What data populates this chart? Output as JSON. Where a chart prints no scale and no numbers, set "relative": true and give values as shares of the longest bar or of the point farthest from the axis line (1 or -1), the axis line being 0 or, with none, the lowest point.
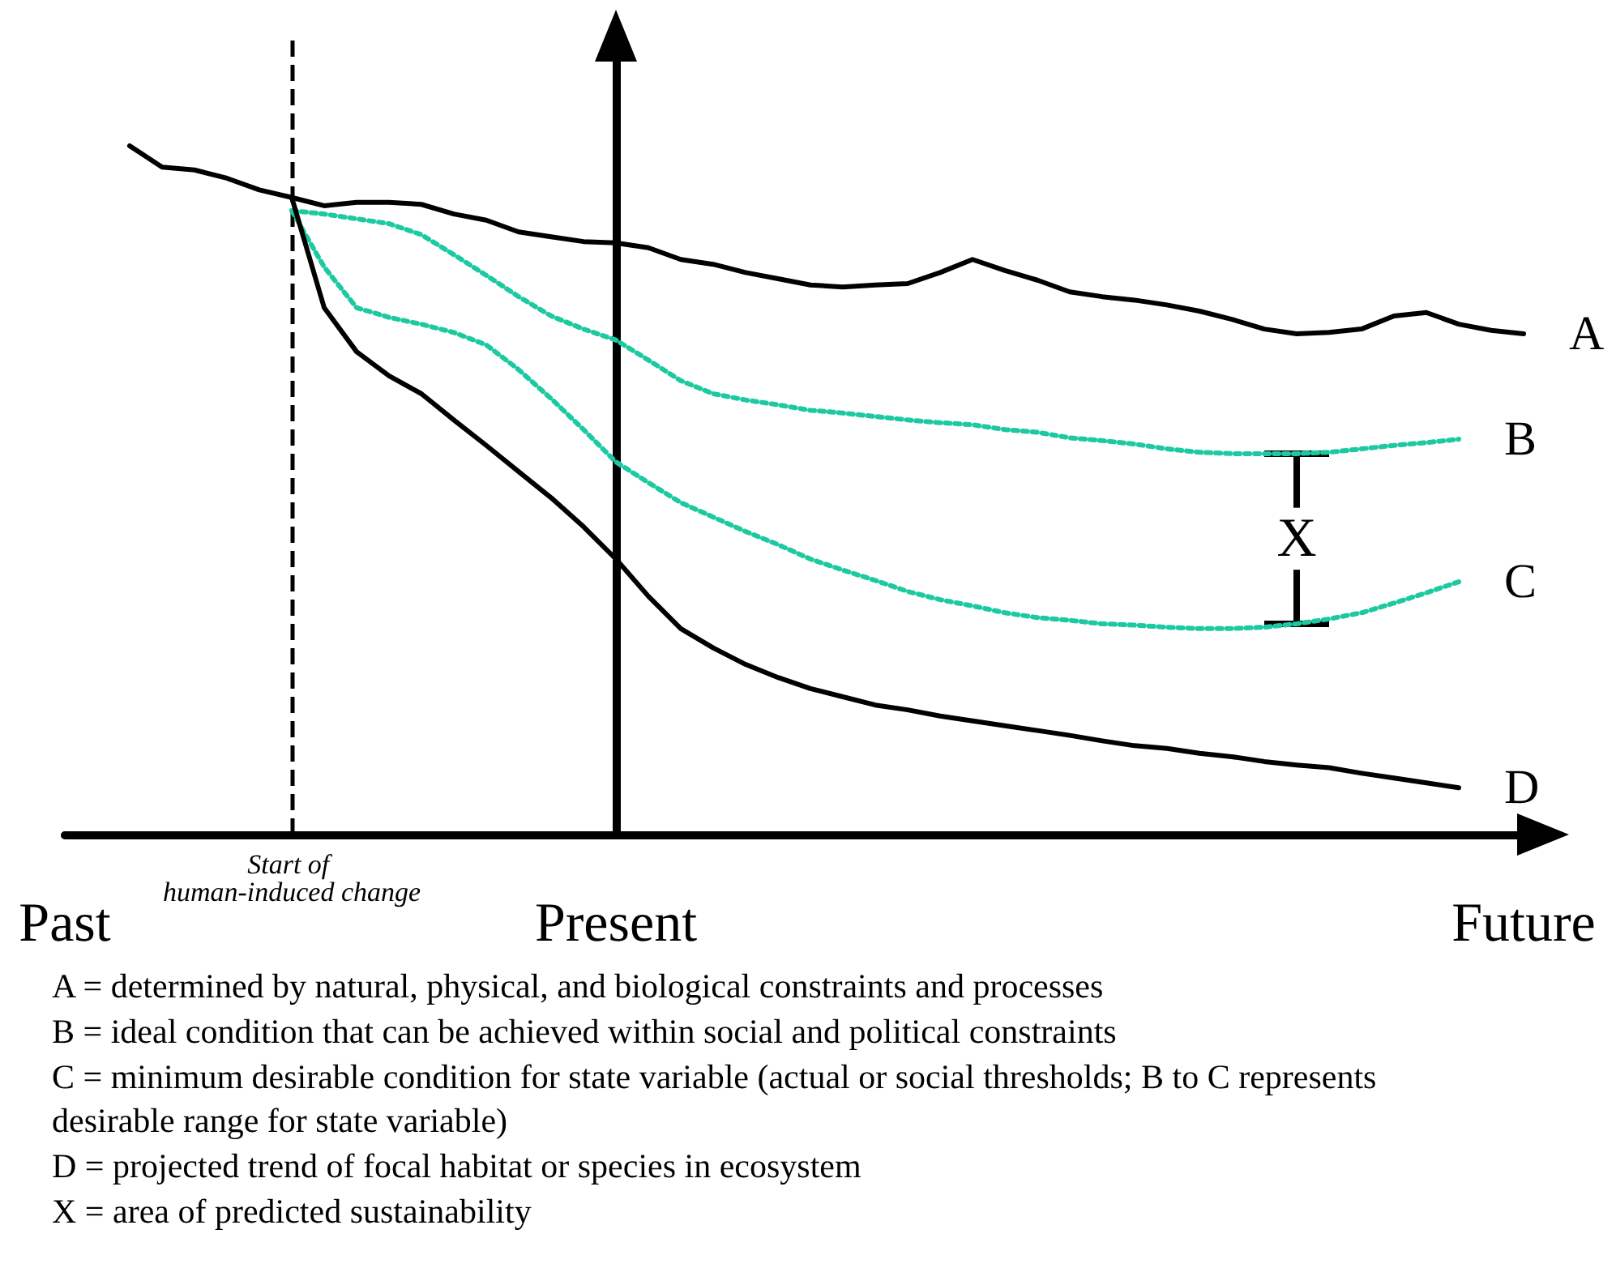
{
  "chart_data": {
    "type": "line",
    "relative": true,
    "legend": false,
    "grid": false,
    "marker": "none",
    "categories": [
      "Past",
      null,
      null,
      null,
      null,
      null,
      null,
      null,
      null,
      null,
      null,
      null,
      null,
      null,
      null,
      null,
      null,
      "Present",
      null,
      null,
      null,
      null,
      null,
      null,
      null,
      null,
      null,
      null,
      null,
      null,
      null,
      null,
      null,
      null,
      null,
      null,
      null,
      null,
      null,
      null,
      null,
      null,
      null,
      null,
      null,
      "Future"
    ],
    "series": [
      {
        "name": "A",
        "color": "#000000",
        "line_style": "solid",
        "values": [
          null,
          null,
          1,
          0.969,
          0.965,
          0.953,
          0.936,
          0.925,
          0.913,
          0.918,
          0.918,
          0.915,
          0.901,
          0.892,
          0.875,
          0.868,
          0.861,
          0.859,
          0.852,
          0.835,
          0.828,
          0.816,
          0.807,
          0.798,
          0.795,
          0.798,
          0.8,
          0.816,
          0.835,
          0.819,
          0.805,
          0.788,
          0.781,
          0.776,
          0.769,
          0.76,
          0.748,
          0.734,
          0.727,
          0.729,
          0.734,
          0.753,
          0.758,
          0.741,
          0.732,
          0.727
        ]
      },
      {
        "name": "B",
        "color": "#1dc9a0",
        "line_style": "dotted",
        "values": [
          null,
          null,
          null,
          null,
          null,
          null,
          null,
          0.906,
          0.901,
          0.894,
          0.887,
          0.871,
          0.842,
          0.812,
          0.781,
          0.753,
          0.734,
          0.718,
          0.689,
          0.659,
          0.64,
          0.631,
          0.624,
          0.616,
          0.612,
          0.607,
          0.602,
          0.598,
          0.595,
          0.588,
          0.584,
          0.576,
          0.572,
          0.567,
          0.56,
          0.555,
          0.553,
          0.553,
          0.553,
          0.555,
          0.56,
          0.565,
          0.569,
          0.574,
          null,
          null
        ]
      },
      {
        "name": "C",
        "color": "#1dc9a0",
        "line_style": "dotted",
        "values": [
          null,
          null,
          null,
          null,
          null,
          null,
          null,
          0.906,
          0.824,
          0.765,
          0.751,
          0.741,
          0.729,
          0.711,
          0.675,
          0.633,
          0.588,
          0.541,
          0.511,
          0.482,
          0.461,
          0.44,
          0.421,
          0.4,
          0.384,
          0.369,
          0.353,
          0.341,
          0.332,
          0.322,
          0.315,
          0.311,
          0.306,
          0.304,
          0.301,
          0.299,
          0.299,
          0.301,
          0.306,
          0.313,
          0.322,
          0.336,
          0.351,
          0.367,
          null,
          null
        ]
      },
      {
        "name": "D",
        "color": "#000000",
        "line_style": "solid",
        "values": [
          null,
          null,
          null,
          null,
          null,
          null,
          null,
          0.925,
          0.765,
          0.701,
          0.666,
          0.64,
          0.602,
          0.565,
          0.527,
          0.489,
          0.447,
          0.4,
          0.346,
          0.299,
          0.271,
          0.247,
          0.228,
          0.212,
          0.2,
          0.188,
          0.181,
          0.172,
          0.165,
          0.158,
          0.151,
          0.144,
          0.136,
          0.129,
          0.125,
          0.118,
          0.113,
          0.106,
          0.101,
          0.097,
          0.089,
          0.082,
          0.075,
          0.068,
          null,
          null
        ]
      }
    ],
    "ref_lines": [
      {
        "axis": "x",
        "value": "Present",
        "label": null,
        "line_style": "solid",
        "color": "#000000"
      }
    ],
    "annotations": [
      "Start of human-induced change",
      "X",
      "A = determined by natural, physical, and biological constraints and processes",
      "B = ideal condition that can be achieved within social and political constraints",
      "C = minimum desirable condition for state variable (actual or social thresholds; B to C represents desirable range for state variable)",
      "D = projected trend of focal habitat or species in ecosystem",
      "X = area of predicted sustainability"
    ]
  }
}
